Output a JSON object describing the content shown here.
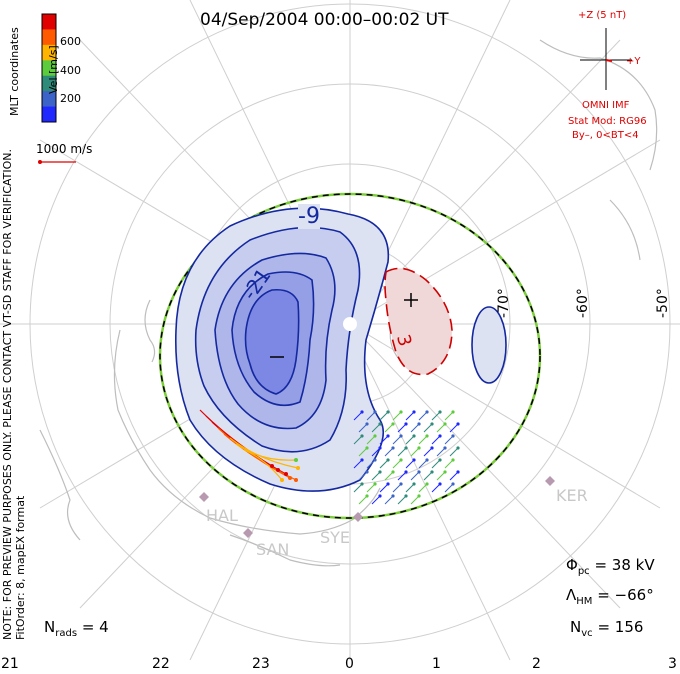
{
  "title": "04/Sep/2004 00:00–00:02 UT",
  "colorbar": {
    "label": "Vel [m/s]",
    "ticks": [
      "600",
      "400",
      "200"
    ],
    "colors": [
      "#e00000",
      "#ff5a00",
      "#ffb400",
      "#5ccc3c",
      "#2e8b7a",
      "#3c64c8",
      "#1e28ff"
    ]
  },
  "coords_label": "MLT coordinates",
  "scale_label": "1000 m/s",
  "note": "NOTE: FOR PREVIEW PURPOSES ONLY. PLEASE CONTACT VT-SD STAFF FOR VERIFICATION.",
  "fit_info": "FitOrder: 8, mapEX format",
  "imf": {
    "z_label": "+Z (5 nT)",
    "y_label": "+Y",
    "source": "OMNI IMF",
    "model": "Stat Mod: RG96",
    "condition": "By–, 0<BT<4"
  },
  "lat_labels": [
    "-70°",
    "-60°",
    "-50°"
  ],
  "mlt_labels": [
    "21",
    "22",
    "23",
    "0",
    "1",
    "2",
    "3"
  ],
  "stations": [
    "HAL",
    "SAN",
    "SYE",
    "KER"
  ],
  "contours": [
    "-9",
    "-21",
    "3"
  ],
  "stats": {
    "phi_label": "Φ",
    "phi_sub": "pc",
    "phi_value": "= 38 kV",
    "lambda_label": "Λ",
    "lambda_sub": "HM",
    "lambda_value": "= −66°",
    "nvc_label": "N",
    "nvc_sub": "vc",
    "nvc_value": "= 156",
    "nrads_label": "N",
    "nrads_sub": "rads",
    "nrads_value": "= 4"
  }
}
